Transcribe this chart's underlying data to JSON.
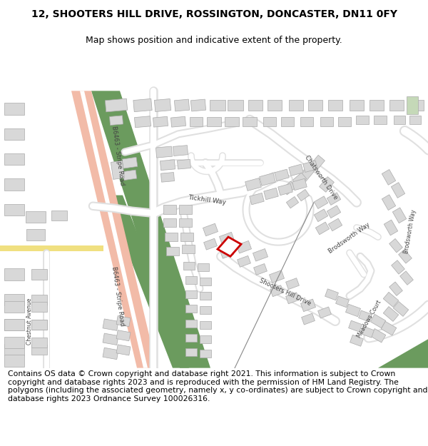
{
  "title_line1": "12, SHOOTERS HILL DRIVE, ROSSINGTON, DONCASTER, DN11 0FY",
  "title_line2": "Map shows position and indicative extent of the property.",
  "title_fontsize": 10.0,
  "subtitle_fontsize": 9.0,
  "footer_lines": [
    "Contains OS data © Crown copyright and database right 2021. This information is subject to Crown copyright and database rights 2023 and is reproduced with the permission of HM Land Registry. The polygons (including the associated geometry, namely x, y",
    "co-ordinates) are subject to Crown copyright and database rights 2023 Ordnance Survey 100026316."
  ],
  "footer_fontsize": 7.8,
  "green": "#6b9b5e",
  "salmon": "#f2bba8",
  "salmon_dark": "#e8a898",
  "yellow": "#f0e080",
  "building": "#d8d8d8",
  "building_edge": "#aaaaaa",
  "road_bg": "#e0e0e0",
  "white": "#ffffff",
  "red": "#cc0000",
  "road_label": "#444444"
}
